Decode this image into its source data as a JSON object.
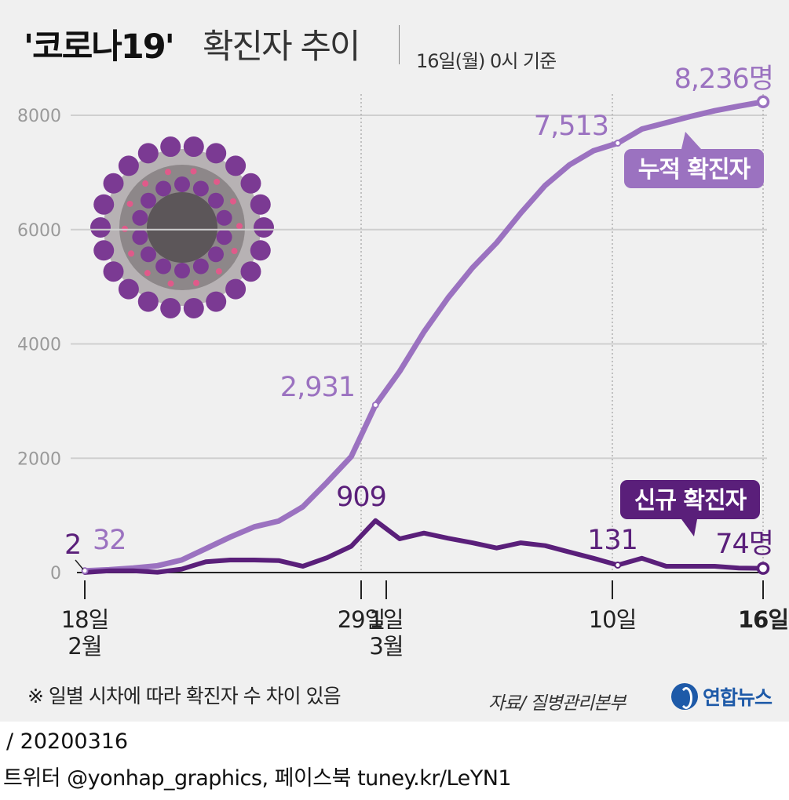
{
  "header": {
    "title_bold": "'코로나19'",
    "title_rest": "확진자 추이",
    "basis": "16일(월) 0시 기준"
  },
  "colors": {
    "cumulative": "#9b72c0",
    "daily": "#5a1f7a",
    "grid": "#cfcfcf",
    "background": "#f0f0f0",
    "brand": "#1e5aa8"
  },
  "chart_data": {
    "type": "line",
    "title": "'코로나19' 확진자 추이",
    "ylim": [
      0,
      8400
    ],
    "yticks": [
      0,
      2000,
      4000,
      6000,
      8000
    ],
    "ytick_labels": [
      "0",
      "2000",
      "4000",
      "6000",
      "8000"
    ],
    "grid": true,
    "x_start_date": "2020-02-18",
    "x_end_date": "2020-03-16",
    "x_tick_labels": [
      {
        "date": "2020-02-18",
        "lines": [
          "18일",
          "2월"
        ]
      },
      {
        "date": "2020-02-29",
        "lines": [
          "29일"
        ]
      },
      {
        "date": "2020-03-01",
        "lines": [
          "1일",
          "3월"
        ]
      },
      {
        "date": "2020-03-10",
        "lines": [
          "10일"
        ]
      },
      {
        "date": "2020-03-16",
        "lines": [
          "16일"
        ],
        "bold": true
      }
    ],
    "series": [
      {
        "name": "누적 확진자",
        "points": [
          [
            "2020-02-18",
            32
          ],
          [
            "2020-02-19",
            50
          ],
          [
            "2020-02-20",
            80
          ],
          [
            "2020-02-21",
            120
          ],
          [
            "2020-02-22",
            220
          ],
          [
            "2020-02-23",
            420
          ],
          [
            "2020-02-24",
            620
          ],
          [
            "2020-02-25",
            800
          ],
          [
            "2020-02-26",
            900
          ],
          [
            "2020-02-27",
            1150
          ],
          [
            "2020-02-28",
            1580
          ],
          [
            "2020-02-28",
            2030
          ],
          [
            "2020-02-29",
            2931
          ],
          [
            "2020-03-01",
            3520
          ],
          [
            "2020-03-02",
            4210
          ],
          [
            "2020-03-03",
            4810
          ],
          [
            "2020-03-04",
            5330
          ],
          [
            "2020-03-05",
            5770
          ],
          [
            "2020-03-06",
            6290
          ],
          [
            "2020-03-07",
            6770
          ],
          [
            "2020-03-08",
            7130
          ],
          [
            "2020-03-09",
            7380
          ],
          [
            "2020-03-10",
            7513
          ],
          [
            "2020-03-11",
            7760
          ],
          [
            "2020-03-12",
            7870
          ],
          [
            "2020-03-13",
            7980
          ],
          [
            "2020-03-14",
            8080
          ],
          [
            "2020-03-15",
            8160
          ],
          [
            "2020-03-16",
            8236
          ]
        ]
      },
      {
        "name": "신규 확진자",
        "points": [
          [
            "2020-02-18",
            2
          ],
          [
            "2020-02-19",
            30
          ],
          [
            "2020-02-20",
            30
          ],
          [
            "2020-02-21",
            5
          ],
          [
            "2020-02-22",
            60
          ],
          [
            "2020-02-23",
            190
          ],
          [
            "2020-02-24",
            220
          ],
          [
            "2020-02-25",
            220
          ],
          [
            "2020-02-26",
            210
          ],
          [
            "2020-02-27",
            110
          ],
          [
            "2020-02-28",
            260
          ],
          [
            "2020-02-28",
            460
          ],
          [
            "2020-02-29",
            909
          ],
          [
            "2020-03-01",
            590
          ],
          [
            "2020-03-02",
            690
          ],
          [
            "2020-03-03",
            600
          ],
          [
            "2020-03-04",
            520
          ],
          [
            "2020-03-05",
            430
          ],
          [
            "2020-03-06",
            520
          ],
          [
            "2020-03-07",
            470
          ],
          [
            "2020-03-08",
            360
          ],
          [
            "2020-03-09",
            250
          ],
          [
            "2020-03-10",
            131
          ],
          [
            "2020-03-11",
            250
          ],
          [
            "2020-03-12",
            110
          ],
          [
            "2020-03-13",
            110
          ],
          [
            "2020-03-14",
            110
          ],
          [
            "2020-03-15",
            80
          ],
          [
            "2020-03-16",
            74
          ]
        ]
      }
    ],
    "value_labels": {
      "cumulative": [
        {
          "date": "2020-02-18",
          "text": "32"
        },
        {
          "date": "2020-02-29",
          "text": "2,931"
        },
        {
          "date": "2020-03-10",
          "text": "7,513"
        },
        {
          "date": "2020-03-16",
          "text": "8,236명"
        }
      ],
      "daily": [
        {
          "date": "2020-02-18",
          "text": "2"
        },
        {
          "date": "2020-02-29",
          "text": "909"
        },
        {
          "date": "2020-03-10",
          "text": "131"
        },
        {
          "date": "2020-03-16",
          "text": "74명"
        }
      ]
    },
    "legend": {
      "cumulative": "누적 확진자",
      "daily": "신규 확진자"
    }
  },
  "note": "※ 일별 시차에 따라 확진자 수 차이 있음",
  "source": "자료/ 질병관리본부",
  "brand": "연합뉴스",
  "footer": {
    "date": "/ 20200316",
    "social": "트위터 @yonhap_graphics, 페이스북 tuney.kr/LeYN1"
  }
}
